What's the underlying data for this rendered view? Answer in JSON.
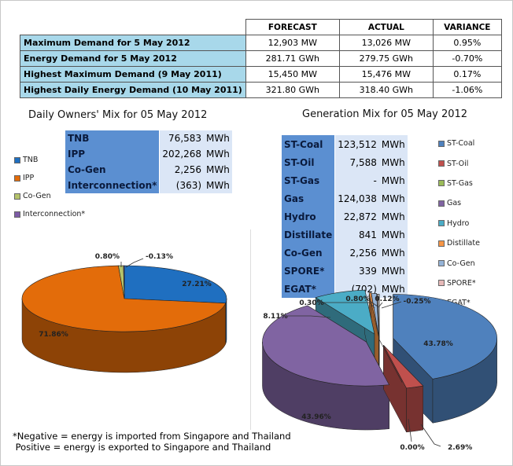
{
  "summary": {
    "headers": [
      "",
      "FORECAST",
      "ACTUAL",
      "VARIANCE"
    ],
    "rows": [
      {
        "label": "Maximum Demand for 5 May 2012",
        "forecast": "12,903  MW",
        "actual": "13,026  MW",
        "variance": "0.95%"
      },
      {
        "label": "Energy Demand for 5 May 2012",
        "forecast": "281.71  GWh",
        "actual": "279.75  GWh",
        "variance": "-0.70%"
      },
      {
        "label": "Highest Maximum Demand (9 May 2011)",
        "forecast": "15,450  MW",
        "actual": "15,476  MW",
        "variance": "0.17%"
      },
      {
        "label": "Highest Daily Energy Demand (10 May 2011)",
        "forecast": "321.80  GWh",
        "actual": "318.40  GWh",
        "variance": "-1.06%"
      }
    ]
  },
  "owners": {
    "title": "Daily Owners' Mix for 05 May 2012",
    "table": [
      {
        "name": "TNB",
        "value": "76,583",
        "unit": "MWh"
      },
      {
        "name": "IPP",
        "value": "202,268",
        "unit": "MWh"
      },
      {
        "name": "Co-Gen",
        "value": "2,256",
        "unit": "MWh"
      },
      {
        "name": "Interconnection*",
        "value": "(363)",
        "unit": "MWh"
      }
    ],
    "legend": [
      "TNB",
      "IPP",
      "Co-Gen",
      "Interconnection*"
    ]
  },
  "generation": {
    "title": "Generation Mix for 05 May 2012",
    "table": [
      {
        "name": "ST-Coal",
        "value": "123,512",
        "unit": "MWh"
      },
      {
        "name": "ST-Oil",
        "value": "7,588",
        "unit": "MWh"
      },
      {
        "name": "ST-Gas",
        "value": "-",
        "unit": "MWh"
      },
      {
        "name": "Gas",
        "value": "124,038",
        "unit": "MWh"
      },
      {
        "name": "Hydro",
        "value": "22,872",
        "unit": "MWh"
      },
      {
        "name": "Distillate",
        "value": "841",
        "unit": "MWh"
      },
      {
        "name": "Co-Gen",
        "value": "2,256",
        "unit": "MWh"
      },
      {
        "name": "SPORE*",
        "value": "339",
        "unit": "MWh"
      },
      {
        "name": "EGAT*",
        "value": "(702)",
        "unit": "MWh"
      }
    ],
    "legend": [
      "ST-Coal",
      "ST-Oil",
      "ST-Gas",
      "Gas",
      "Hydro",
      "Distillate",
      "Co-Gen",
      "SPORE*",
      "EGAT*"
    ]
  },
  "chart_data": [
    {
      "type": "pie",
      "title": "Daily Owners' Mix for 05 May 2012",
      "categories": [
        "TNB",
        "IPP",
        "Co-Gen",
        "Interconnection*"
      ],
      "values": [
        27.21,
        71.86,
        0.8,
        -0.13
      ],
      "labels": [
        "27.21%",
        "71.86%",
        "0.80%",
        "-0.13%"
      ],
      "colors": [
        "#1f6fc0",
        "#e36c0a",
        "#b5c36a",
        "#7d5ba6"
      ],
      "legend": "left"
    },
    {
      "type": "pie",
      "title": "Generation Mix for 05 May 2012",
      "categories": [
        "ST-Coal",
        "ST-Oil",
        "ST-Gas",
        "Gas",
        "Hydro",
        "Distillate",
        "Co-Gen",
        "SPORE*",
        "EGAT*"
      ],
      "values": [
        43.78,
        2.69,
        0.0,
        43.96,
        8.11,
        0.3,
        0.8,
        0.12,
        -0.25
      ],
      "labels": [
        "43.78%",
        "2.69%",
        "0.00%",
        "43.96%",
        "8.11%",
        "0.30%",
        "0.80%",
        "0.12%",
        "-0.25%"
      ],
      "colors": [
        "#4f81bd",
        "#c0504d",
        "#9bbb59",
        "#8064a2",
        "#4bacc6",
        "#f79646",
        "#95b3d7",
        "#e6b9b8",
        "#d9d9d9"
      ],
      "legend": "right"
    }
  ],
  "footnote": {
    "line1": "*Negative = energy is imported from Singapore and Thailand",
    "line2": " Positive = energy is exported to Singapore and Thailand"
  }
}
